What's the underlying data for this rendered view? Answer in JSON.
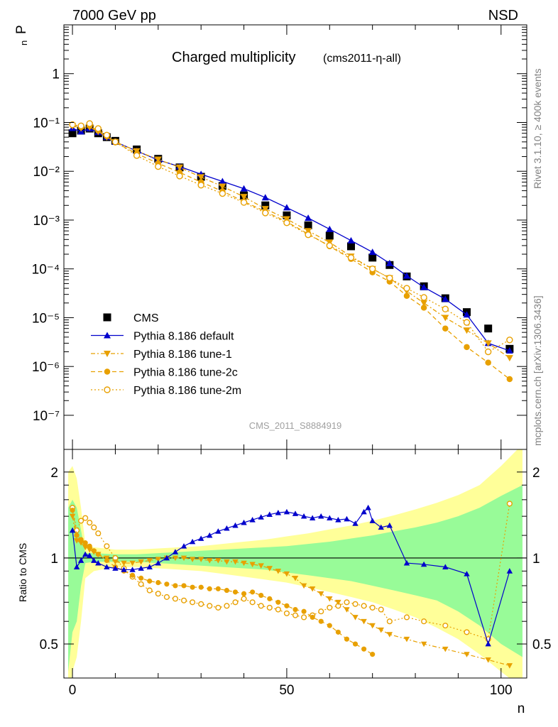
{
  "header": {
    "energy_label": "7000 GeV pp",
    "process_label": "NSD",
    "side_label_rivet": "Rivet 3.1.10, ≥ 400k events",
    "side_label_mcplots": "mcplots.cern.ch [arXiv:1306.3436]"
  },
  "chart_data": [
    {
      "type": "scatter",
      "panel": "main",
      "title": "Charged multiplicity",
      "subtitle": "(cms2011-η-all)",
      "analysis_id": "CMS_2011_S8884919",
      "xlabel": "n",
      "ylabel": "P",
      "ylabel_sub": "n",
      "yscale": "log",
      "xlim": [
        -2,
        106
      ],
      "ylim": [
        2e-08,
        10
      ],
      "y_ticks": [
        {
          "value": 1e-07,
          "label": "10⁻⁷"
        },
        {
          "value": 1e-06,
          "label": "10⁻⁶"
        },
        {
          "value": 1e-05,
          "label": "10⁻⁵"
        },
        {
          "value": 0.0001,
          "label": "10⁻⁴"
        },
        {
          "value": 0.001,
          "label": "10⁻³"
        },
        {
          "value": 0.01,
          "label": "10⁻²"
        },
        {
          "value": 0.1,
          "label": "10⁻¹"
        },
        {
          "value": 1,
          "label": "1"
        }
      ],
      "legend_position": "bottom-left",
      "series": [
        {
          "name": "CMS",
          "color": "#000000",
          "style": "square",
          "line": "none",
          "x": [
            0,
            2,
            4,
            6,
            8,
            10,
            15,
            20,
            25,
            30,
            35,
            40,
            45,
            50,
            55,
            60,
            65,
            70,
            74,
            78,
            82,
            87,
            92,
            97,
            102
          ],
          "y": [
            0.06,
            0.068,
            0.075,
            0.06,
            0.05,
            0.042,
            0.028,
            0.018,
            0.012,
            0.0077,
            0.005,
            0.0032,
            0.002,
            0.00125,
            0.00078,
            0.00048,
            0.00029,
            0.00017,
            0.00012,
            7e-05,
            4.4e-05,
            2.5e-05,
            1.3e-05,
            6e-06,
            2.3e-06
          ]
        },
        {
          "name": "Pythia 8.186 default",
          "color": "#0000cc",
          "style": "triangle-up",
          "line": "solid",
          "x": [
            0,
            2,
            4,
            6,
            8,
            10,
            15,
            20,
            25,
            30,
            35,
            40,
            45,
            50,
            55,
            60,
            65,
            70,
            74,
            78,
            82,
            87,
            92,
            97,
            102
          ],
          "y": [
            0.076,
            0.065,
            0.075,
            0.063,
            0.05,
            0.04,
            0.026,
            0.017,
            0.0125,
            0.0087,
            0.0062,
            0.0044,
            0.0029,
            0.0018,
            0.0011,
            0.00065,
            0.00038,
            0.00022,
            0.00013,
            7.2e-05,
            4.2e-05,
            2.4e-05,
            1.15e-05,
            3e-06,
            2.1e-06
          ]
        },
        {
          "name": "Pythia 8.186 tune-1",
          "color": "#e8a000",
          "style": "triangle-down",
          "line": "dash-dot",
          "x": [
            0,
            2,
            4,
            6,
            8,
            10,
            15,
            20,
            25,
            30,
            35,
            40,
            45,
            50,
            55,
            60,
            65,
            70,
            74,
            78,
            82,
            87,
            92,
            97,
            102
          ],
          "y": [
            0.085,
            0.076,
            0.08,
            0.065,
            0.05,
            0.04,
            0.026,
            0.0175,
            0.012,
            0.0076,
            0.0049,
            0.003,
            0.0017,
            0.00105,
            0.0006,
            0.00035,
            0.00018,
            0.0001,
            6.5e-05,
            3.5e-05,
            2e-05,
            1e-05,
            5.5e-06,
            3e-06,
            1.5e-06
          ]
        },
        {
          "name": "Pythia 8.186 tune-2c",
          "color": "#e8a000",
          "style": "circle",
          "line": "dashed",
          "x": [
            0,
            2,
            4,
            6,
            8,
            10,
            15,
            20,
            25,
            30,
            35,
            40,
            45,
            50,
            55,
            60,
            65,
            70,
            74,
            78,
            82,
            87,
            92,
            97,
            102
          ],
          "y": [
            0.088,
            0.08,
            0.085,
            0.068,
            0.052,
            0.039,
            0.023,
            0.0145,
            0.0095,
            0.006,
            0.0039,
            0.0024,
            0.0015,
            0.00092,
            0.00052,
            0.00029,
            0.00016,
            8.5e-05,
            5.5e-05,
            2.8e-05,
            1.6e-05,
            6e-06,
            2.5e-06,
            1.2e-06,
            5.5e-07
          ]
        },
        {
          "name": "Pythia 8.186 tune-2m",
          "color": "#e8a000",
          "style": "open-circle",
          "line": "dotted",
          "x": [
            0,
            2,
            4,
            6,
            8,
            10,
            15,
            20,
            25,
            30,
            35,
            40,
            45,
            50,
            55,
            60,
            65,
            70,
            74,
            78,
            82,
            87,
            92,
            97,
            102
          ],
          "y": [
            0.09,
            0.085,
            0.095,
            0.075,
            0.055,
            0.04,
            0.021,
            0.0125,
            0.008,
            0.0052,
            0.0035,
            0.0023,
            0.0014,
            0.00088,
            0.0005,
            0.0003,
            0.00017,
            0.0001,
            6.5e-05,
            4e-05,
            2.6e-05,
            1.5e-05,
            8e-06,
            2e-06,
            3.5e-06
          ]
        }
      ]
    },
    {
      "type": "scatter",
      "panel": "ratio",
      "ylabel": "Ratio to CMS",
      "xlabel": "n",
      "yscale": "log",
      "xlim": [
        -2,
        106
      ],
      "ylim": [
        0.38,
        2.4
      ],
      "reference_line": 1,
      "x_ticks": [
        {
          "value": 0,
          "label": "0"
        },
        {
          "value": 50,
          "label": "50"
        },
        {
          "value": 100,
          "label": "100"
        }
      ],
      "y_ticks": [
        {
          "value": 0.5,
          "label": "0.5"
        },
        {
          "value": 1,
          "label": "1"
        },
        {
          "value": 2,
          "label": "2"
        }
      ],
      "uncertainty_bands": {
        "x": [
          -1,
          0,
          1,
          2,
          3,
          5,
          10,
          15,
          20,
          25,
          30,
          35,
          40,
          45,
          50,
          55,
          60,
          65,
          70,
          75,
          80,
          85,
          90,
          95,
          100,
          105
        ],
        "inner_low": [
          0.4,
          0.55,
          0.6,
          0.8,
          0.96,
          0.97,
          0.97,
          0.97,
          0.96,
          0.95,
          0.94,
          0.93,
          0.92,
          0.91,
          0.89,
          0.87,
          0.85,
          0.83,
          0.8,
          0.77,
          0.74,
          0.71,
          0.65,
          0.58,
          0.5,
          0.45
        ],
        "inner_high": [
          1.5,
          1.6,
          1.5,
          1.25,
          1.04,
          1.04,
          1.03,
          1.03,
          1.04,
          1.05,
          1.06,
          1.07,
          1.08,
          1.09,
          1.1,
          1.12,
          1.14,
          1.17,
          1.2,
          1.24,
          1.28,
          1.33,
          1.4,
          1.5,
          1.65,
          1.8
        ],
        "outer_low": [
          0.3,
          0.4,
          0.45,
          0.6,
          0.85,
          0.9,
          0.93,
          0.93,
          0.92,
          0.91,
          0.9,
          0.88,
          0.86,
          0.84,
          0.82,
          0.79,
          0.76,
          0.73,
          0.7,
          0.66,
          0.62,
          0.57,
          0.52,
          0.46,
          0.4,
          0.35
        ],
        "outer_high": [
          2.0,
          2.1,
          1.9,
          1.5,
          1.12,
          1.09,
          1.07,
          1.07,
          1.08,
          1.09,
          1.1,
          1.12,
          1.14,
          1.16,
          1.19,
          1.22,
          1.26,
          1.3,
          1.35,
          1.41,
          1.48,
          1.56,
          1.66,
          1.8,
          2.1,
          2.5
        ]
      },
      "series": [
        {
          "name": "Pythia 8.186 default",
          "color": "#0000cc",
          "style": "triangle-up",
          "line": "solid",
          "x": [
            0,
            1,
            2,
            3,
            4,
            5,
            6,
            8,
            10,
            12,
            14,
            16,
            18,
            20,
            22,
            24,
            26,
            28,
            30,
            32,
            34,
            36,
            38,
            40,
            42,
            44,
            46,
            48,
            50,
            52,
            54,
            56,
            58,
            60,
            62,
            64,
            66,
            68,
            69,
            70,
            72,
            74,
            78,
            82,
            87,
            92,
            97,
            102
          ],
          "y": [
            1.25,
            0.93,
            0.98,
            1.03,
            1.02,
            0.98,
            0.96,
            0.93,
            0.92,
            0.91,
            0.91,
            0.92,
            0.93,
            0.96,
            1.0,
            1.05,
            1.1,
            1.14,
            1.17,
            1.2,
            1.24,
            1.27,
            1.3,
            1.33,
            1.36,
            1.39,
            1.42,
            1.44,
            1.45,
            1.43,
            1.4,
            1.38,
            1.4,
            1.38,
            1.36,
            1.37,
            1.32,
            1.45,
            1.5,
            1.35,
            1.28,
            1.3,
            0.96,
            0.95,
            0.93,
            0.88,
            0.5,
            0.9
          ]
        },
        {
          "name": "Pythia 8.186 tune-1",
          "color": "#e8a000",
          "style": "triangle-down",
          "line": "dash-dot",
          "x": [
            0,
            1,
            2,
            3,
            4,
            5,
            6,
            8,
            10,
            12,
            14,
            16,
            18,
            20,
            22,
            24,
            26,
            28,
            30,
            32,
            34,
            36,
            38,
            40,
            42,
            44,
            46,
            48,
            50,
            52,
            54,
            56,
            58,
            60,
            62,
            64,
            66,
            68,
            70,
            72,
            74,
            78,
            82,
            87,
            92,
            97,
            102
          ],
          "y": [
            1.4,
            1.15,
            1.13,
            1.09,
            1.07,
            1.05,
            1.03,
            1.0,
            0.97,
            0.96,
            0.96,
            0.97,
            0.98,
            0.99,
            1.0,
            1.0,
            1.0,
            0.99,
            0.99,
            0.98,
            0.98,
            0.97,
            0.97,
            0.96,
            0.95,
            0.94,
            0.92,
            0.9,
            0.88,
            0.85,
            0.8,
            0.78,
            0.75,
            0.72,
            0.7,
            0.66,
            0.62,
            0.6,
            0.58,
            0.56,
            0.54,
            0.52,
            0.5,
            0.48,
            0.46,
            0.44,
            0.42
          ]
        },
        {
          "name": "Pythia 8.186 tune-2c",
          "color": "#e8a000",
          "style": "circle",
          "line": "dashed",
          "x": [
            0,
            1,
            2,
            3,
            4,
            5,
            6,
            8,
            10,
            12,
            14,
            16,
            18,
            20,
            22,
            24,
            26,
            28,
            30,
            32,
            34,
            36,
            38,
            40,
            42,
            44,
            46,
            48,
            50,
            52,
            54,
            56,
            58,
            60,
            62,
            64,
            66,
            68,
            70
          ],
          "y": [
            1.47,
            1.2,
            1.16,
            1.13,
            1.1,
            1.06,
            1.03,
            0.98,
            0.93,
            0.9,
            0.87,
            0.85,
            0.83,
            0.82,
            0.81,
            0.8,
            0.8,
            0.79,
            0.79,
            0.78,
            0.78,
            0.77,
            0.76,
            0.75,
            0.76,
            0.74,
            0.72,
            0.7,
            0.68,
            0.66,
            0.65,
            0.62,
            0.6,
            0.58,
            0.55,
            0.52,
            0.5,
            0.48,
            0.46
          ]
        },
        {
          "name": "Pythia 8.186 tune-2m",
          "color": "#e8a000",
          "style": "open-circle",
          "line": "dotted",
          "x": [
            0,
            1,
            2,
            3,
            4,
            5,
            6,
            8,
            10,
            12,
            14,
            16,
            18,
            20,
            22,
            24,
            26,
            28,
            30,
            32,
            34,
            36,
            38,
            40,
            42,
            44,
            46,
            48,
            50,
            52,
            54,
            56,
            58,
            60,
            62,
            64,
            66,
            68,
            70,
            72,
            74,
            78,
            82,
            87,
            92,
            97,
            102
          ],
          "y": [
            1.5,
            1.25,
            1.35,
            1.38,
            1.33,
            1.28,
            1.22,
            1.1,
            1.0,
            0.92,
            0.86,
            0.81,
            0.77,
            0.75,
            0.73,
            0.72,
            0.71,
            0.7,
            0.69,
            0.68,
            0.67,
            0.68,
            0.7,
            0.72,
            0.7,
            0.68,
            0.67,
            0.66,
            0.64,
            0.63,
            0.62,
            0.63,
            0.65,
            0.67,
            0.68,
            0.7,
            0.69,
            0.68,
            0.67,
            0.66,
            0.6,
            0.62,
            0.6,
            0.58,
            0.55,
            0.52,
            1.55
          ]
        }
      ]
    }
  ]
}
